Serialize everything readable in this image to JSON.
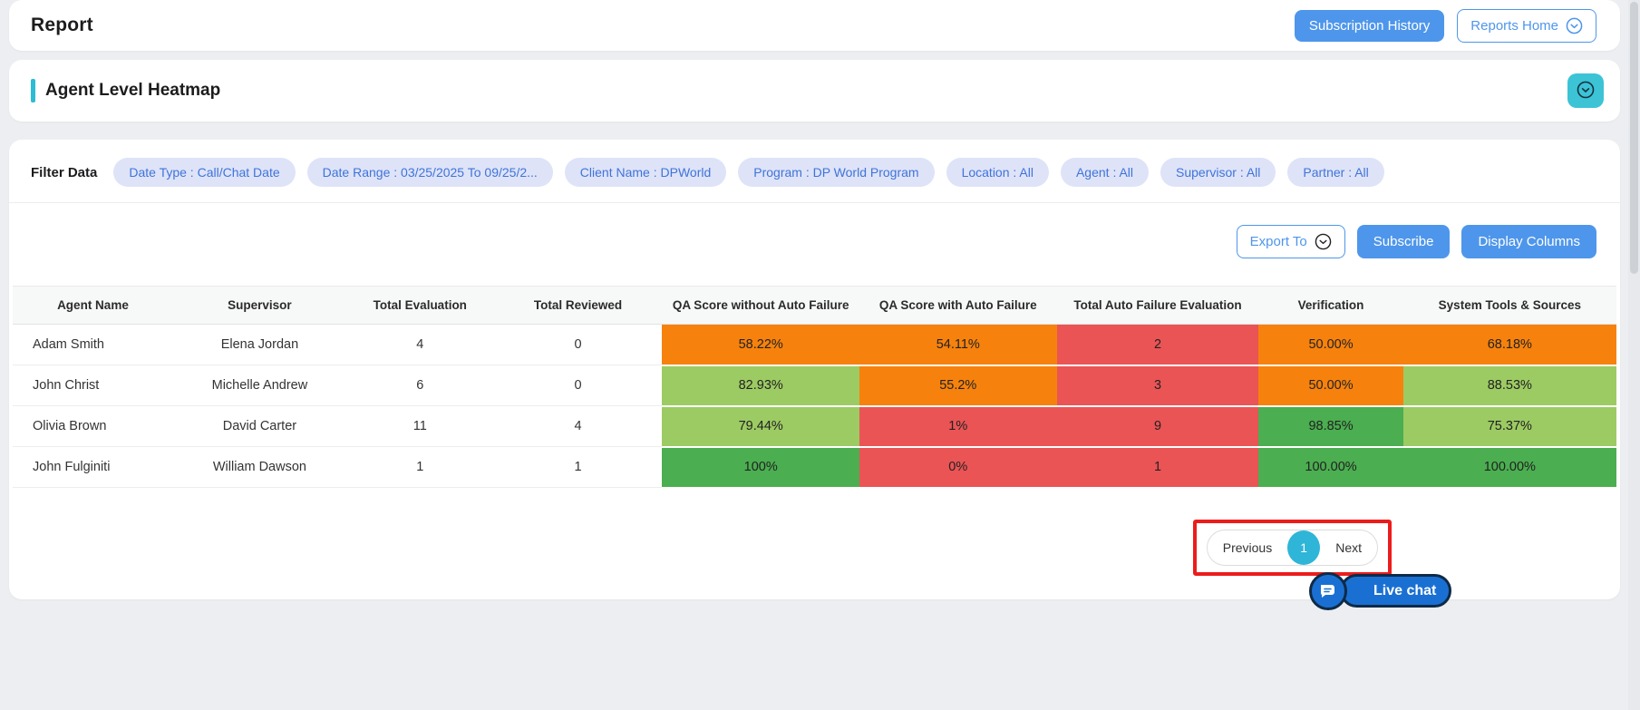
{
  "header": {
    "title": "Report",
    "subscription_history_label": "Subscription History",
    "reports_home_label": "Reports Home"
  },
  "section": {
    "title": "Agent Level Heatmap"
  },
  "filters": {
    "label": "Filter Data",
    "chips": [
      "Date Type : Call/Chat Date",
      "Date Range : 03/25/2025 To 09/25/2...",
      "Client Name : DPWorld",
      "Program : DP World Program",
      "Location : All",
      "Agent : All",
      "Supervisor : All",
      "Partner : All"
    ]
  },
  "toolbar": {
    "export_label": "Export To",
    "subscribe_label": "Subscribe",
    "display_columns_label": "Display Columns"
  },
  "colors": {
    "orange": "#f6820d",
    "red": "#ea5455",
    "lightGreen": "#9ccb63",
    "green": "#4bae50",
    "accent_teal": "#2cbcd3",
    "button_blue": "#4e96eb",
    "chip_bg": "#dee3f8",
    "chip_text": "#3f74d9",
    "pager_active": "#2fb5d8",
    "annotation_red": "#ec1c1c",
    "live_chat_blue": "#1a70d2"
  },
  "table": {
    "columns": [
      "Agent Name",
      "Supervisor",
      "Total Evaluation",
      "Total Reviewed",
      "QA Score without Auto Failure",
      "QA Score with Auto Failure",
      "Total Auto Failure Evaluation",
      "Verification",
      "System Tools & Sources"
    ],
    "rows": [
      {
        "agent": "Adam Smith",
        "supervisor": "Elena Jordan",
        "total_evaluation": "4",
        "total_reviewed": "0",
        "heat": [
          {
            "value": "58.22%",
            "tone": "orange"
          },
          {
            "value": "54.11%",
            "tone": "orange"
          },
          {
            "value": "2",
            "tone": "red"
          },
          {
            "value": "50.00%",
            "tone": "orange"
          },
          {
            "value": "68.18%",
            "tone": "orange"
          }
        ]
      },
      {
        "agent": "John Christ",
        "supervisor": "Michelle Andrew",
        "total_evaluation": "6",
        "total_reviewed": "0",
        "heat": [
          {
            "value": "82.93%",
            "tone": "lightGreen"
          },
          {
            "value": "55.2%",
            "tone": "orange"
          },
          {
            "value": "3",
            "tone": "red"
          },
          {
            "value": "50.00%",
            "tone": "orange"
          },
          {
            "value": "88.53%",
            "tone": "lightGreen"
          }
        ]
      },
      {
        "agent": "Olivia Brown",
        "supervisor": "David Carter",
        "total_evaluation": "11",
        "total_reviewed": "4",
        "heat": [
          {
            "value": "79.44%",
            "tone": "lightGreen"
          },
          {
            "value": "1%",
            "tone": "red"
          },
          {
            "value": "9",
            "tone": "red"
          },
          {
            "value": "98.85%",
            "tone": "green"
          },
          {
            "value": "75.37%",
            "tone": "lightGreen"
          }
        ]
      },
      {
        "agent": "John Fulginiti",
        "supervisor": "William Dawson",
        "total_evaluation": "1",
        "total_reviewed": "1",
        "heat": [
          {
            "value": "100%",
            "tone": "green"
          },
          {
            "value": "0%",
            "tone": "red"
          },
          {
            "value": "1",
            "tone": "red"
          },
          {
            "value": "100.00%",
            "tone": "green"
          },
          {
            "value": "100.00%",
            "tone": "green"
          }
        ]
      }
    ]
  },
  "pagination": {
    "previous_label": "Previous",
    "current_page": "1",
    "next_label": "Next"
  },
  "live_chat": {
    "label": "Live chat"
  }
}
